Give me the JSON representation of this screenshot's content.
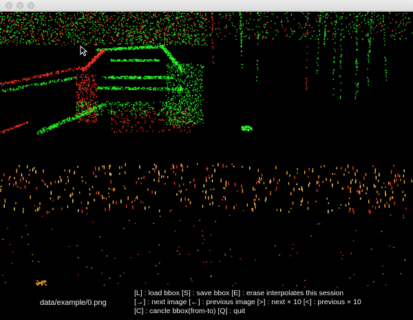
{
  "window": {
    "controls": [
      "close",
      "minimize",
      "zoom"
    ]
  },
  "viewer": {
    "filename": "data/example/0.png",
    "colors": {
      "background": "#000000",
      "near": "#22ff22",
      "far": "#ff3322",
      "mid": "#ffaa22"
    }
  },
  "help": {
    "line1": "[L] : load bbox   [S] : save bbox   [E] : erase interpolates this session",
    "line2": "[→] : next image   [←] : previous image   [>] : next × 10   [<] : previous × 10",
    "line3": "[C] : cancle bbox(from-to)  [Q] : quit"
  }
}
